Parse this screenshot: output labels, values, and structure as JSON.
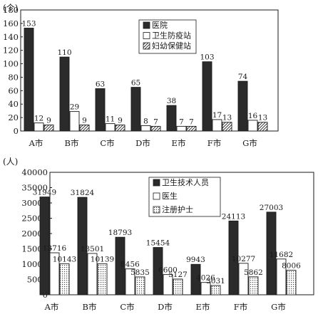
{
  "chart_data": [
    {
      "type": "bar",
      "ylabel": "(个)",
      "ylim": [
        0,
        180
      ],
      "yticks": [
        0,
        20,
        40,
        60,
        80,
        100,
        120,
        140,
        160,
        180
      ],
      "categories": [
        "A市",
        "B市",
        "C市",
        "D市",
        "E市",
        "F市",
        "G市"
      ],
      "legend_position": "top-right",
      "series": [
        {
          "name": "医院",
          "values": [
            153,
            110,
            63,
            65,
            38,
            103,
            74
          ],
          "fill": "dark"
        },
        {
          "name": "卫生防疫站",
          "values": [
            12,
            29,
            11,
            8,
            7,
            17,
            16
          ],
          "fill": "white"
        },
        {
          "name": "妇幼保健站",
          "values": [
            9,
            9,
            9,
            7,
            7,
            13,
            13
          ],
          "fill": "hatch"
        }
      ]
    },
    {
      "type": "bar",
      "ylabel": "(人)",
      "ylim": [
        0,
        40000
      ],
      "yticks": [
        0,
        5000,
        10000,
        15000,
        20000,
        25000,
        30000,
        35000,
        40000
      ],
      "categories": [
        "A市",
        "B市",
        "C市",
        "D市",
        "E市",
        "F市",
        "G市"
      ],
      "legend_position": "top-right",
      "series": [
        {
          "name": "卫生技术人员",
          "values": [
            31949,
            31824,
            18793,
            15454,
            9943,
            24113,
            27003
          ],
          "fill": "dark"
        },
        {
          "name": "医生",
          "values": [
            13716,
            13501,
            8456,
            6600,
            4026,
            10277,
            11682
          ],
          "fill": "white"
        },
        {
          "name": "注册护士",
          "values": [
            10143,
            10139,
            5835,
            5127,
            3031,
            5862,
            8006
          ],
          "fill": "dots"
        }
      ]
    }
  ],
  "colors": {
    "dark": "#2b2b2b",
    "axis": "#1a1a1a",
    "white": "#ffffff"
  }
}
